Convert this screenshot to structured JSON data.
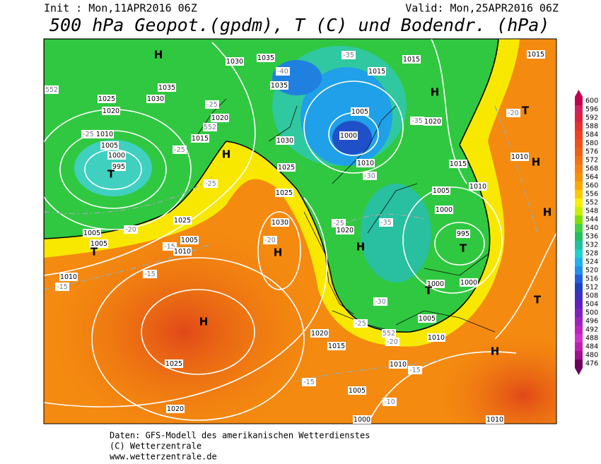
{
  "header": {
    "init": "Init : Mon,11APR2016 06Z",
    "valid": "Valid: Mon,25APR2016 06Z",
    "title": "500 hPa Geopot.(gpdm), T (C) und Bodendr. (hPa)"
  },
  "legend": {
    "levels": [
      600,
      596,
      592,
      588,
      584,
      580,
      576,
      572,
      568,
      564,
      560,
      556,
      552,
      548,
      544,
      540,
      536,
      532,
      528,
      524,
      520,
      516,
      512,
      508,
      504,
      500,
      496,
      492,
      488,
      484,
      480,
      476
    ],
    "colors": [
      "#c00050",
      "#d02060",
      "#e02040",
      "#e83030",
      "#f04020",
      "#f05018",
      "#f06010",
      "#f57010",
      "#f88010",
      "#fa9000",
      "#fca800",
      "#fcc800",
      "#f8f000",
      "#c8f000",
      "#80e000",
      "#40d040",
      "#20c060",
      "#20c0a0",
      "#20d0d0",
      "#20b0f0",
      "#2090f0",
      "#2060e0",
      "#2040c0",
      "#4030c0",
      "#6020c0",
      "#8020c0",
      "#a020c0",
      "#c020c0",
      "#d030d0",
      "#c020b0",
      "#a01090",
      "#700060"
    ]
  },
  "map": {
    "labels": [
      "H",
      1035,
      1030,
      -40,
      1035,
      -35,
      1015,
      1015,
      1015,
      552,
      1025,
      1035,
      1030,
      1020,
      -25,
      1020,
      552,
      1015,
      -25,
      1010,
      1005,
      1000,
      995,
      "T",
      -25,
      "H",
      1030,
      1025,
      -25,
      1005,
      1000,
      -35,
      1020,
      "H",
      -20,
      "T",
      1010,
      "H",
      1015,
      1010,
      1005,
      1000,
      1010,
      -30,
      1025,
      1030,
      -20,
      "H",
      1020,
      -25,
      -35,
      "H",
      995,
      "T",
      -20,
      1005,
      1005,
      "T",
      -15,
      1005,
      1010,
      1025,
      "H",
      1010,
      -15,
      -15,
      1000,
      "T",
      1000,
      -30,
      "T",
      1005,
      1010,
      "H",
      1020,
      -25,
      552,
      -20,
      1015,
      "H",
      1025,
      1010,
      -15,
      -15,
      1005,
      -10,
      1020,
      1000,
      1010
    ]
  },
  "footer": {
    "line1": "Daten: GFS-Modell des amerikanischen Wetterdienstes",
    "line2": "(C) Wetterzentrale",
    "line3": "www.wetterzentrale.de"
  }
}
